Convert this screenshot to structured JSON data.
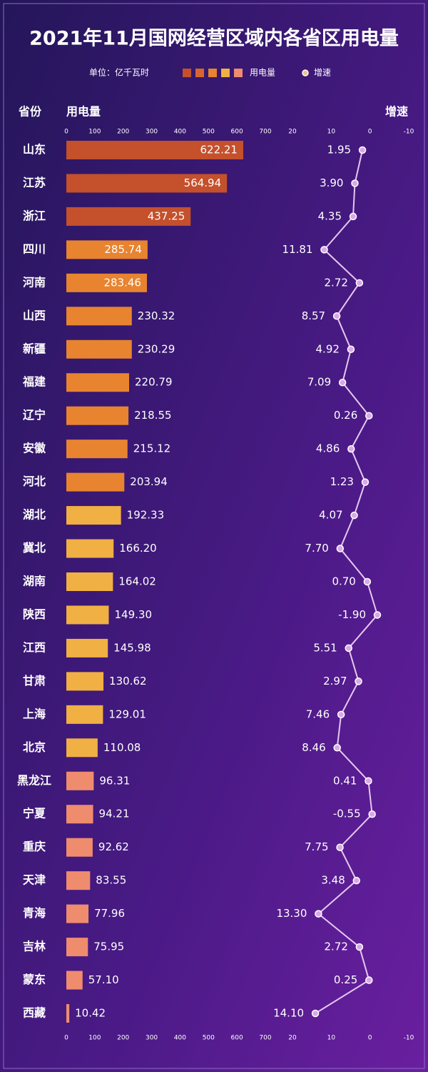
{
  "chart_data": [
    {
      "type": "bar",
      "title": "2021年11月国网经营区域内各省区用电量",
      "unit": "单位：亿千瓦时",
      "category_label": "省份",
      "categories": [
        "山东",
        "江苏",
        "浙江",
        "四川",
        "河南",
        "山西",
        "新疆",
        "福建",
        "辽宁",
        "安徽",
        "河北",
        "湖北",
        "冀北",
        "湖南",
        "陕西",
        "江西",
        "甘肃",
        "上海",
        "北京",
        "黑龙江",
        "宁夏",
        "重庆",
        "天津",
        "青海",
        "吉林",
        "蒙东",
        "西藏"
      ],
      "series": [
        {
          "name": "用电量",
          "colors": [
            "#c4502c",
            "#c4502c",
            "#c4502c",
            "#e8832f",
            "#e8832f",
            "#e8832f",
            "#e8832f",
            "#e8832f",
            "#e8832f",
            "#e8832f",
            "#e8832f",
            "#f0b043",
            "#f0b043",
            "#f0b043",
            "#f0b043",
            "#f0b043",
            "#f0b043",
            "#f0b043",
            "#f0b043",
            "#ef8c6e",
            "#ef8c6e",
            "#ef8c6e",
            "#ef8c6e",
            "#ef8c6e",
            "#ef8c6e",
            "#ef8c6e",
            "#ef8c6e"
          ],
          "values": [
            622.21,
            564.94,
            437.25,
            285.74,
            283.46,
            230.32,
            230.29,
            220.79,
            218.55,
            215.12,
            203.94,
            192.33,
            166.2,
            164.02,
            149.3,
            145.98,
            130.62,
            129.01,
            110.08,
            96.31,
            94.21,
            92.62,
            83.55,
            77.96,
            75.95,
            57.1,
            10.42
          ],
          "value_labels": [
            "622.21",
            "564.94",
            "437.25",
            "285.74",
            "283.46",
            "230.32",
            "230.29",
            "220.79",
            "218.55",
            "215.12",
            "203.94",
            "192.33",
            "166.20",
            "164.02",
            "149.30",
            "145.98",
            "130.62",
            "129.01",
            "110.08",
            "96.31",
            "94.21",
            "92.62",
            "83.55",
            "77.96",
            "75.95",
            "57.10",
            "10.42"
          ]
        }
      ],
      "legend_colors": [
        "#c4502c",
        "#d9652f",
        "#e8832f",
        "#f0b043",
        "#ef8c6e"
      ],
      "xlim": [
        0,
        700
      ],
      "xticks": [
        0,
        100,
        200,
        300,
        400,
        500,
        600,
        700
      ]
    },
    {
      "type": "line",
      "series": [
        {
          "name": "增速",
          "color": "#e6c8f0",
          "values": [
            1.95,
            3.9,
            4.35,
            11.81,
            2.72,
            8.57,
            4.92,
            7.09,
            0.26,
            4.86,
            1.23,
            4.07,
            7.7,
            0.7,
            -1.9,
            5.51,
            2.97,
            7.46,
            8.46,
            0.41,
            -0.55,
            7.75,
            3.48,
            13.3,
            2.72,
            0.25,
            14.1
          ],
          "value_labels": [
            "1.95",
            "3.90",
            "4.35",
            "11.81",
            "2.72",
            "8.57",
            "4.92",
            "7.09",
            "0.26",
            "4.86",
            "1.23",
            "4.07",
            "7.70",
            "0.70",
            "-1.90",
            "5.51",
            "2.97",
            "7.46",
            "8.46",
            "0.41",
            "-0.55",
            "7.75",
            "3.48",
            "13.30",
            "2.72",
            "0.25",
            "14.10"
          ]
        }
      ],
      "xlim": [
        20,
        -10
      ],
      "xticks": [
        20,
        10,
        0,
        -10
      ]
    }
  ]
}
